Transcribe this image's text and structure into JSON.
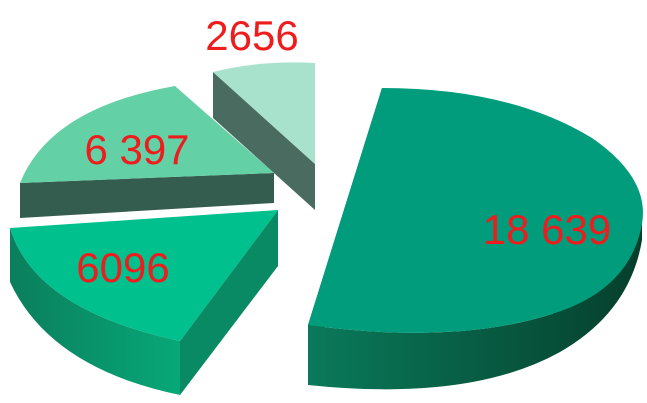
{
  "chart_data": {
    "type": "pie",
    "style": "3d-exploded",
    "slices": [
      {
        "label": "18 639",
        "value": 18639,
        "top": "#009c7b",
        "side": "#0b6a4e"
      },
      {
        "label": "6096",
        "value": 6096,
        "top": "#00c08e",
        "side": "#088a64"
      },
      {
        "label": "6 397",
        "value": 6397,
        "top": "#63d0a6",
        "side": "#345c4f"
      },
      {
        "label": "2656",
        "value": 2656,
        "top": "#a8e2cc",
        "side": "#4a6b60"
      }
    ],
    "label_color": "#ee1c1c",
    "background": "#ffffff"
  }
}
